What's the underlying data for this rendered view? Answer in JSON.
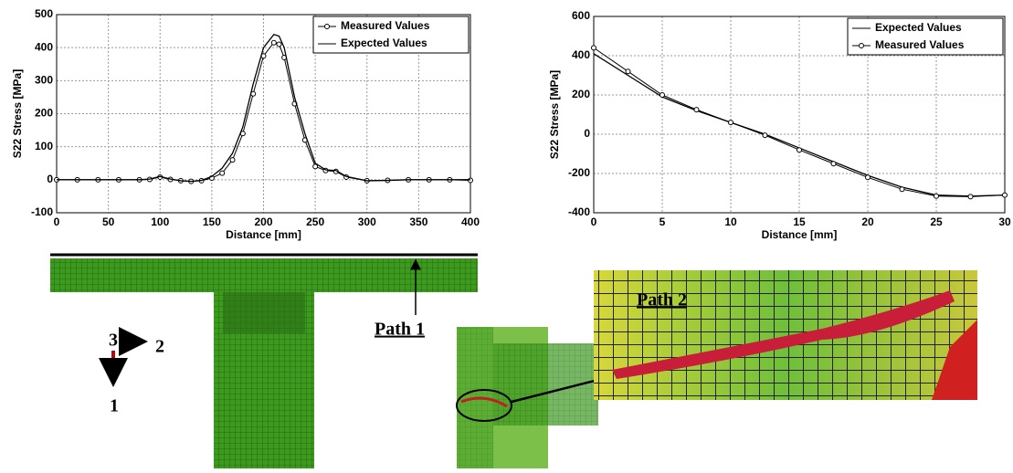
{
  "chart_data": [
    {
      "type": "line",
      "xlabel": "Distance [mm]",
      "ylabel": "S22 Stress [MPa]",
      "x": [
        0,
        20,
        40,
        60,
        80,
        90,
        100,
        110,
        120,
        130,
        140,
        150,
        160,
        170,
        180,
        190,
        200,
        210,
        215,
        220,
        230,
        240,
        250,
        260,
        270,
        280,
        300,
        320,
        340,
        360,
        380,
        400
      ],
      "series": [
        {
          "name": "Measured Values",
          "color": "#000000",
          "marker": "circle",
          "values": [
            0,
            0,
            0,
            0,
            0,
            1,
            8,
            1,
            -3,
            -5,
            -3,
            5,
            20,
            60,
            140,
            260,
            375,
            415,
            410,
            370,
            230,
            120,
            40,
            28,
            25,
            8,
            -3,
            -2,
            0,
            0,
            0,
            -2
          ]
        },
        {
          "name": "Expected Values",
          "color": "#000000",
          "marker": "none",
          "values": [
            0,
            0,
            0,
            0,
            0,
            2,
            10,
            2,
            -3,
            -5,
            -2,
            10,
            35,
            80,
            160,
            290,
            400,
            440,
            435,
            400,
            250,
            140,
            50,
            30,
            28,
            10,
            -3,
            -2,
            0,
            0,
            0,
            0
          ]
        }
      ],
      "xlim": [
        0,
        400
      ],
      "xticks": [
        0,
        50,
        100,
        150,
        200,
        250,
        300,
        350,
        400
      ],
      "ylim": [
        -100,
        500
      ],
      "yticks": [
        -100,
        0,
        100,
        200,
        300,
        400,
        500
      ],
      "grid": true,
      "legend": "upper right"
    },
    {
      "type": "line",
      "xlabel": "Distance [mm]",
      "ylabel": "S22 Stress [MPa]",
      "x": [
        0,
        2.5,
        5,
        7.5,
        10,
        12.5,
        15,
        17.5,
        20,
        22.5,
        25,
        27.5,
        30
      ],
      "series": [
        {
          "name": "Expected Values",
          "color": "#000000",
          "marker": "none",
          "values": [
            410,
            300,
            190,
            120,
            60,
            0,
            -70,
            -140,
            -210,
            -270,
            -310,
            -315,
            -310
          ]
        },
        {
          "name": "Measured Values",
          "color": "#000000",
          "marker": "circle",
          "values": [
            440,
            320,
            200,
            125,
            60,
            -5,
            -80,
            -150,
            -220,
            -280,
            -315,
            -318,
            -310
          ]
        }
      ],
      "xlim": [
        0,
        30
      ],
      "xticks": [
        0,
        5,
        10,
        15,
        20,
        25,
        30
      ],
      "ylim": [
        -400,
        600
      ],
      "yticks": [
        -400,
        -200,
        0,
        200,
        400,
        600
      ],
      "grid": true,
      "legend": "upper right"
    }
  ],
  "labels": {
    "path1": "Path 1",
    "path2": "Path 2",
    "axis3": "3",
    "axis2": "2",
    "axis1": "1"
  }
}
